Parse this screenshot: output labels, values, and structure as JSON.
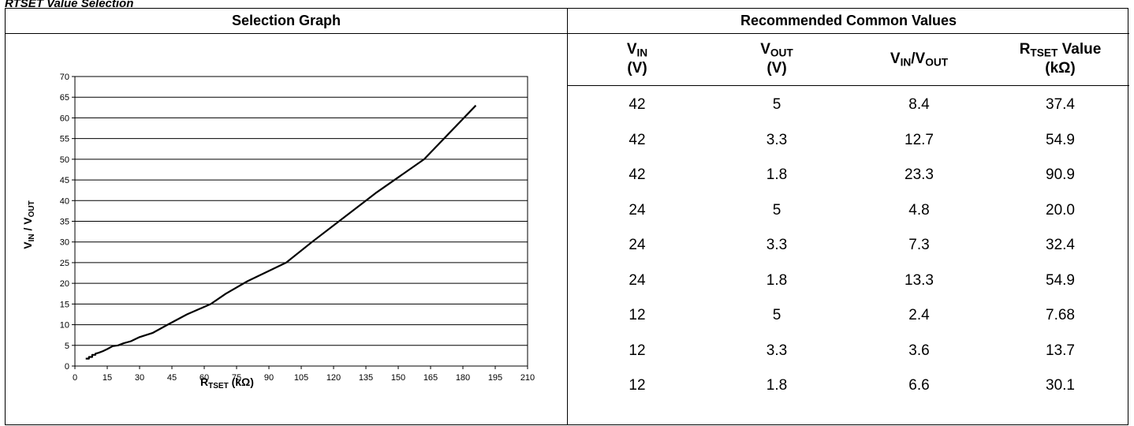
{
  "caption": "RTSET Value Selection",
  "graph_header": "Selection Graph",
  "table_header": "Recommended Common Values",
  "chart_data": {
    "type": "line",
    "title": "",
    "xlabel": {
      "main": "R",
      "sub": "TSET",
      "unit": " (kΩ)"
    },
    "ylabel": {
      "a": "V",
      "a_sub": "IN",
      "sep": " / ",
      "b": "V",
      "b_sub": "OUT"
    },
    "xlim": [
      0,
      210
    ],
    "ylim": [
      0,
      70
    ],
    "x_ticks": [
      0,
      15,
      30,
      45,
      60,
      75,
      90,
      105,
      120,
      135,
      150,
      165,
      180,
      195,
      210
    ],
    "y_ticks": [
      0,
      5,
      10,
      15,
      20,
      25,
      30,
      35,
      40,
      45,
      50,
      55,
      60,
      65,
      70
    ],
    "grid": "horizontal",
    "series": [
      {
        "x": [
          5,
          6.5,
          6.5,
          8,
          8,
          9.5,
          9.5,
          11,
          13,
          15,
          17.5,
          20,
          22.5,
          26,
          30,
          36,
          43,
          52,
          63,
          70,
          80,
          98,
          110,
          125,
          140,
          162,
          186
        ],
        "y": [
          1.8,
          1.8,
          2.2,
          2.2,
          2.7,
          2.7,
          3.0,
          3.2,
          3.6,
          4.1,
          4.8,
          5.0,
          5.5,
          6.0,
          7.0,
          8.0,
          10.0,
          12.5,
          15.0,
          17.5,
          20.5,
          25.0,
          30.0,
          36.0,
          42.0,
          50.0,
          63.0
        ]
      }
    ]
  },
  "table": {
    "columns": [
      {
        "main": "V",
        "sub": "IN",
        "unit": "(V)"
      },
      {
        "main": "V",
        "sub": "OUT",
        "unit": "(V)"
      },
      {
        "a": "V",
        "a_sub": "IN",
        "sep": "/",
        "b": "V",
        "b_sub": "OUT"
      },
      {
        "main": "R",
        "sub": "TSET",
        "tail": " Value",
        "unit": "(kΩ)"
      }
    ],
    "rows": [
      [
        "42",
        "5",
        "8.4",
        "37.4"
      ],
      [
        "42",
        "3.3",
        "12.7",
        "54.9"
      ],
      [
        "42",
        "1.8",
        "23.3",
        "90.9"
      ],
      [
        "24",
        "5",
        "4.8",
        "20.0"
      ],
      [
        "24",
        "3.3",
        "7.3",
        "32.4"
      ],
      [
        "24",
        "1.8",
        "13.3",
        "54.9"
      ],
      [
        "12",
        "5",
        "2.4",
        "7.68"
      ],
      [
        "12",
        "3.3",
        "3.6",
        "13.7"
      ],
      [
        "12",
        "1.8",
        "6.6",
        "30.1"
      ]
    ]
  }
}
